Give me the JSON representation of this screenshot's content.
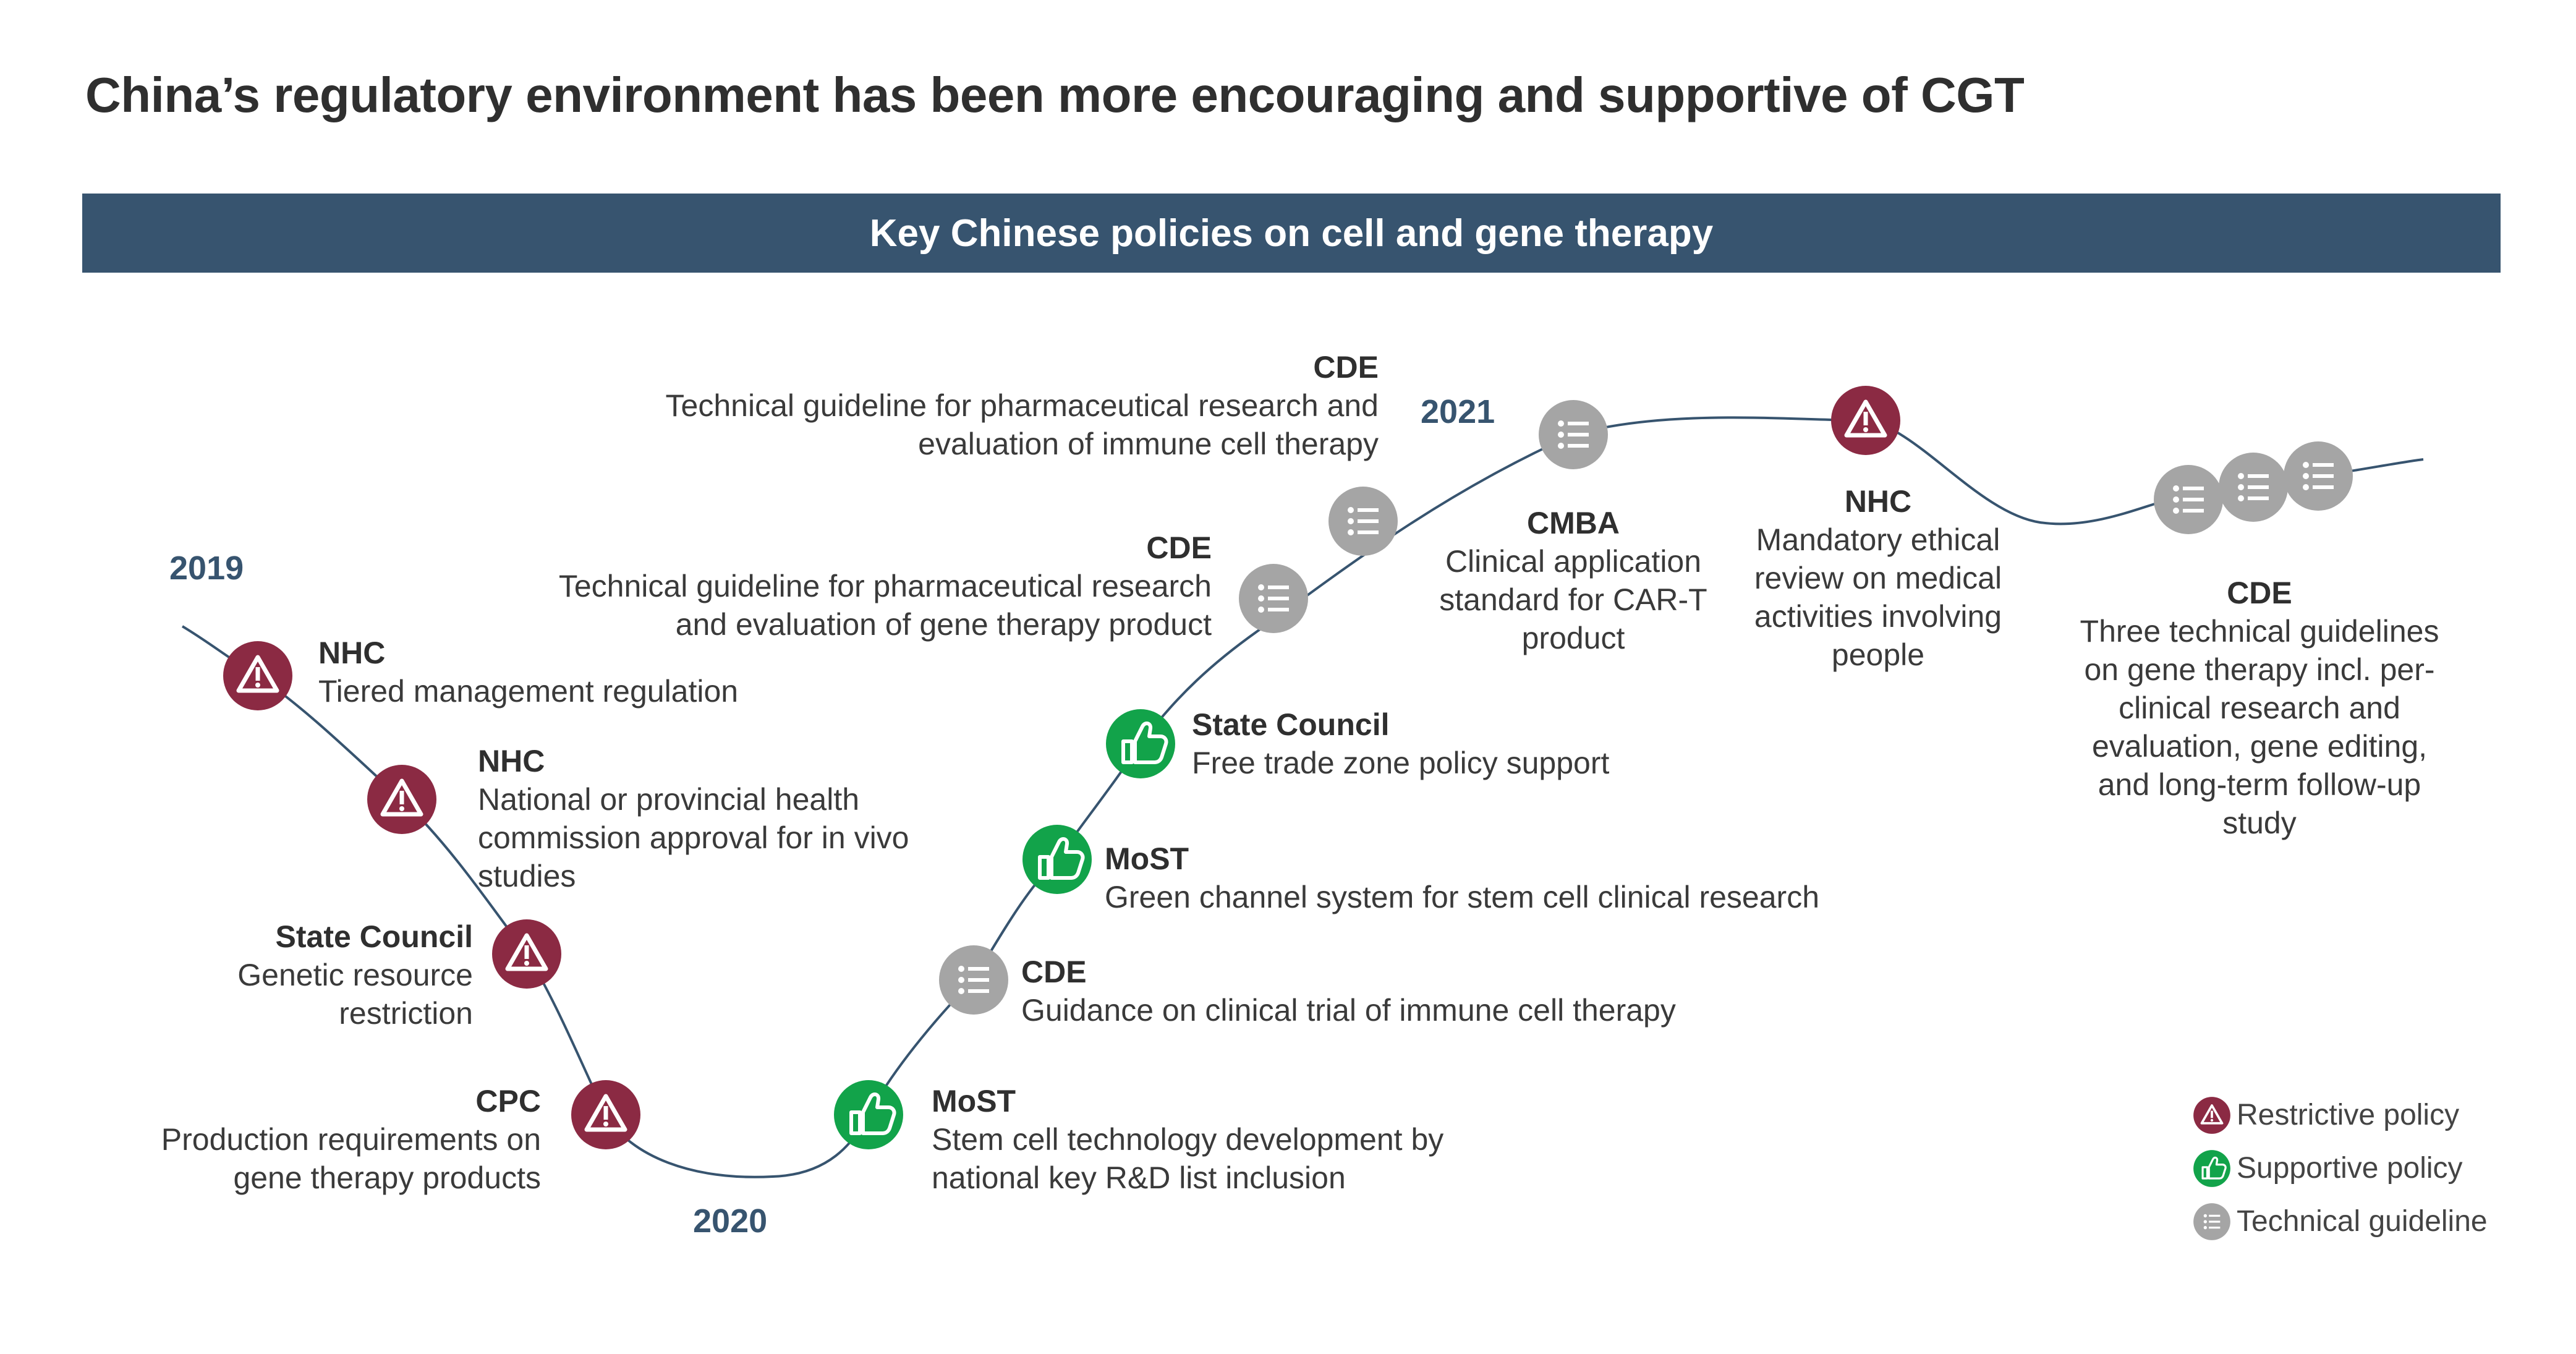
{
  "title": "China’s regulatory environment has been more encouraging and supportive of CGT",
  "banner": "Key Chinese policies on cell and gene therapy",
  "colors": {
    "restrictive": "#8b2a43",
    "supportive": "#12a34a",
    "guideline": "#a5a5a5",
    "curve": "#37546f",
    "banner": "#37546f"
  },
  "years": [
    "2019",
    "2020",
    "2021"
  ],
  "events": [
    {
      "type": "restrictive",
      "org": "NHC",
      "desc": "Tiered management regulation"
    },
    {
      "type": "restrictive",
      "org": "NHC",
      "desc": "National or provincial health commission approval for in vivo studies"
    },
    {
      "type": "restrictive",
      "org": "State Council",
      "desc": "Genetic resource restriction"
    },
    {
      "type": "restrictive",
      "org": "CPC",
      "desc": "Production requirements on gene therapy products"
    },
    {
      "type": "supportive",
      "org": "MoST",
      "desc": "Stem cell technology development by national key R&D list inclusion"
    },
    {
      "type": "guideline",
      "org": "CDE",
      "desc": "Guidance on clinical trial of immune cell therapy"
    },
    {
      "type": "supportive",
      "org": "MoST",
      "desc": "Green channel system for stem cell clinical research"
    },
    {
      "type": "supportive",
      "org": "State Council",
      "desc": "Free trade zone policy support"
    },
    {
      "type": "guideline",
      "org": "CDE",
      "desc": "Technical guideline for pharmaceutical research and evaluation of gene therapy product"
    },
    {
      "type": "guideline",
      "org": "CDE",
      "desc": "Technical guideline for pharmaceutical research and evaluation of immune cell therapy"
    },
    {
      "type": "guideline",
      "org": "CMBA",
      "desc": "Clinical application standard for CAR-T product"
    },
    {
      "type": "restrictive",
      "org": "NHC",
      "desc": "Mandatory ethical review on medical activities involving people"
    },
    {
      "type": "guideline",
      "org": "CDE",
      "desc": "Three technical guidelines on gene therapy incl. per-clinical research and evaluation, gene editing, and long-term follow-up study"
    }
  ],
  "legend": [
    {
      "type": "restrictive",
      "label": "Restrictive policy"
    },
    {
      "type": "supportive",
      "label": "Supportive policy"
    },
    {
      "type": "guideline",
      "label": "Technical guideline"
    }
  ]
}
